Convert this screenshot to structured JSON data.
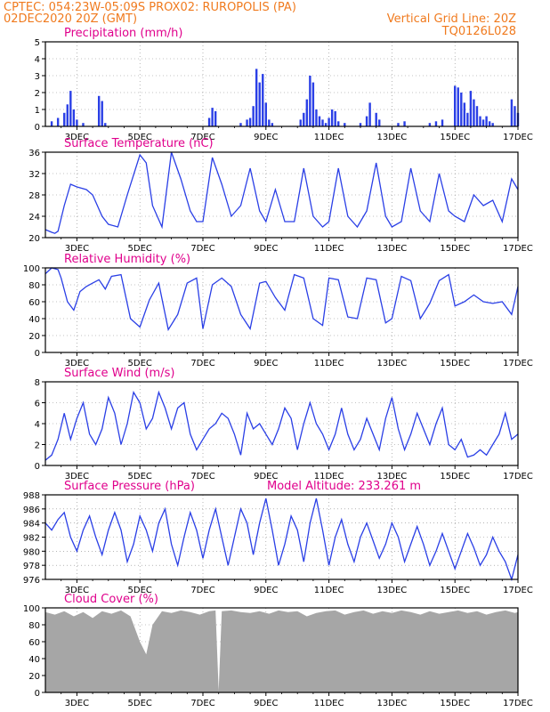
{
  "header": {
    "line1": "CPTEC:   054:23W-05:09S   PROX02: RUROPOLIS (PA)",
    "line2": "02DEC2020 20Z (GMT)",
    "grid_note": "Vertical Grid Line: 20Z",
    "code": "TQ0126L028"
  },
  "colors": {
    "header": "#f07a1e",
    "title": "#e0008c",
    "line": "#2a3fe6",
    "bar": "#2a3fe6",
    "cloud": "#a6a6a6"
  },
  "x_ticks": [
    "3DEC",
    "5DEC",
    "7DEC",
    "9DEC",
    "11DEC",
    "13DEC",
    "15DEC",
    "17DEC"
  ],
  "chart_data": [
    {
      "type": "bar",
      "title": "Precipitation (mm/h)",
      "ylim": [
        0,
        5
      ],
      "yticks": [
        "0",
        "1",
        "2",
        "3",
        "4",
        "5"
      ],
      "x": [
        2.2,
        2.4,
        2.6,
        2.7,
        2.8,
        2.9,
        3.0,
        3.2,
        3.7,
        3.8,
        3.9,
        7.2,
        7.3,
        7.4,
        8.2,
        8.4,
        8.5,
        8.6,
        8.7,
        8.8,
        8.9,
        9.0,
        9.1,
        9.2,
        10.1,
        10.2,
        10.3,
        10.4,
        10.5,
        10.6,
        10.7,
        10.8,
        10.9,
        11.0,
        11.1,
        11.2,
        11.3,
        11.5,
        12.0,
        12.2,
        12.3,
        12.5,
        12.6,
        13.2,
        13.4,
        14.2,
        14.4,
        14.6,
        15.0,
        15.1,
        15.2,
        15.3,
        15.4,
        15.5,
        15.6,
        15.7,
        15.8,
        15.9,
        16.0,
        16.1,
        16.2,
        16.8,
        16.9,
        17.0
      ],
      "values": [
        0.3,
        0.5,
        0.8,
        1.3,
        2.1,
        1.0,
        0.4,
        0.2,
        1.8,
        1.5,
        0.2,
        0.5,
        1.1,
        0.9,
        0.2,
        0.4,
        0.5,
        1.2,
        3.4,
        2.6,
        3.1,
        1.4,
        0.4,
        0.2,
        0.4,
        0.8,
        1.6,
        3.0,
        2.6,
        1.0,
        0.6,
        0.4,
        0.2,
        0.5,
        1.0,
        0.9,
        0.3,
        0.2,
        0.2,
        0.6,
        1.4,
        0.8,
        0.4,
        0.2,
        0.3,
        0.2,
        0.3,
        0.4,
        2.4,
        2.3,
        2.0,
        1.4,
        0.8,
        2.1,
        1.6,
        1.2,
        0.6,
        0.4,
        0.6,
        0.3,
        0.2,
        1.6,
        1.2,
        0.8
      ]
    },
    {
      "type": "line",
      "title": "Surface Temperature (nC)",
      "ylim": [
        20,
        36
      ],
      "yticks": [
        "20",
        "24",
        "28",
        "32",
        "36"
      ],
      "x": [
        2.0,
        2.2,
        2.3,
        2.4,
        2.6,
        2.8,
        3.0,
        3.3,
        3.5,
        3.8,
        4.0,
        4.3,
        4.6,
        5.0,
        5.2,
        5.4,
        5.7,
        6.0,
        6.3,
        6.6,
        6.8,
        7.0,
        7.3,
        7.6,
        7.9,
        8.2,
        8.5,
        8.8,
        9.0,
        9.3,
        9.6,
        9.9,
        10.2,
        10.5,
        10.8,
        11.0,
        11.3,
        11.6,
        11.9,
        12.2,
        12.5,
        12.8,
        13.0,
        13.3,
        13.6,
        13.9,
        14.2,
        14.5,
        14.8,
        15.0,
        15.3,
        15.6,
        15.9,
        16.2,
        16.5,
        16.8,
        17.0
      ],
      "values": [
        21.5,
        21.0,
        20.8,
        21.2,
        26,
        30,
        29.5,
        29,
        28,
        24,
        22.5,
        22,
        28,
        35.5,
        34,
        26,
        22,
        36,
        31,
        25,
        23,
        23,
        35,
        30,
        24,
        26,
        33,
        25,
        23,
        29,
        23,
        23,
        33,
        24,
        22,
        23,
        33,
        24,
        22,
        25,
        34,
        24,
        22,
        23,
        33,
        25,
        23,
        32,
        25,
        24,
        23,
        28,
        26,
        27,
        23,
        31,
        29
      ]
    },
    {
      "type": "line",
      "title": "Relative Humidity (%)",
      "ylim": [
        0,
        100
      ],
      "yticks": [
        "0",
        "20",
        "40",
        "60",
        "80",
        "100"
      ],
      "x": [
        2.0,
        2.2,
        2.4,
        2.5,
        2.7,
        2.9,
        3.1,
        3.3,
        3.5,
        3.7,
        3.9,
        4.1,
        4.4,
        4.7,
        5.0,
        5.3,
        5.6,
        5.9,
        6.2,
        6.5,
        6.8,
        7.0,
        7.3,
        7.6,
        7.9,
        8.2,
        8.5,
        8.8,
        9.0,
        9.3,
        9.6,
        9.9,
        10.2,
        10.5,
        10.8,
        11.0,
        11.3,
        11.6,
        11.9,
        12.2,
        12.5,
        12.8,
        13.0,
        13.3,
        13.6,
        13.9,
        14.2,
        14.5,
        14.8,
        15.0,
        15.3,
        15.6,
        15.9,
        16.2,
        16.5,
        16.8,
        17.0
      ],
      "values": [
        93,
        100,
        98,
        88,
        60,
        50,
        72,
        78,
        82,
        86,
        75,
        90,
        92,
        40,
        30,
        62,
        82,
        27,
        45,
        82,
        88,
        28,
        80,
        88,
        78,
        45,
        28,
        82,
        84,
        65,
        50,
        92,
        88,
        40,
        32,
        88,
        86,
        42,
        40,
        88,
        86,
        35,
        40,
        90,
        85,
        40,
        58,
        85,
        92,
        55,
        60,
        68,
        60,
        58,
        60,
        45,
        78
      ]
    },
    {
      "type": "line",
      "title": "Surface Wind (m/s)",
      "ylim": [
        0,
        8
      ],
      "yticks": [
        "0",
        "2",
        "4",
        "6",
        "8"
      ],
      "x": [
        2.0,
        2.2,
        2.4,
        2.6,
        2.8,
        3.0,
        3.2,
        3.4,
        3.6,
        3.8,
        4.0,
        4.2,
        4.4,
        4.6,
        4.8,
        5.0,
        5.2,
        5.4,
        5.6,
        5.8,
        6.0,
        6.2,
        6.4,
        6.6,
        6.8,
        7.0,
        7.2,
        7.4,
        7.6,
        7.8,
        8.0,
        8.2,
        8.4,
        8.6,
        8.8,
        9.0,
        9.2,
        9.4,
        9.6,
        9.8,
        10.0,
        10.2,
        10.4,
        10.6,
        10.8,
        11.0,
        11.2,
        11.4,
        11.6,
        11.8,
        12.0,
        12.2,
        12.4,
        12.6,
        12.8,
        13.0,
        13.2,
        13.4,
        13.6,
        13.8,
        14.0,
        14.2,
        14.4,
        14.6,
        14.8,
        15.0,
        15.2,
        15.4,
        15.6,
        15.8,
        16.0,
        16.2,
        16.4,
        16.6,
        16.8,
        17.0
      ],
      "values": [
        0.5,
        1.0,
        2.5,
        5.0,
        2.5,
        4.5,
        6.0,
        3.0,
        2.0,
        3.5,
        6.5,
        5.0,
        2.0,
        4.0,
        7.0,
        6.0,
        3.5,
        4.5,
        7.0,
        5.5,
        3.5,
        5.5,
        6.0,
        3.0,
        1.5,
        2.5,
        3.5,
        4.0,
        5.0,
        4.5,
        3.0,
        1.0,
        5.0,
        3.5,
        4.0,
        3.0,
        2.0,
        3.5,
        5.5,
        4.5,
        1.5,
        4.0,
        6.0,
        4.0,
        3.0,
        1.5,
        3.0,
        5.5,
        3.0,
        1.5,
        2.5,
        4.5,
        3.0,
        1.5,
        4.5,
        6.5,
        3.5,
        1.5,
        3.0,
        5.0,
        3.5,
        2.0,
        4.0,
        5.5,
        2.0,
        1.5,
        2.5,
        0.8,
        1.0,
        1.5,
        1.0,
        2.0,
        3.0,
        5.0,
        2.5,
        3.0
      ]
    },
    {
      "type": "line",
      "title": "Surface Pressure (hPa)",
      "annotation": "Model Altitude: 233.261  m",
      "ylim": [
        976,
        988
      ],
      "yticks": [
        "976",
        "978",
        "980",
        "982",
        "984",
        "986",
        "988"
      ],
      "x": [
        2.0,
        2.2,
        2.4,
        2.6,
        2.8,
        3.0,
        3.2,
        3.4,
        3.6,
        3.8,
        4.0,
        4.2,
        4.4,
        4.6,
        4.8,
        5.0,
        5.2,
        5.4,
        5.6,
        5.8,
        6.0,
        6.2,
        6.4,
        6.6,
        6.8,
        7.0,
        7.2,
        7.4,
        7.6,
        7.8,
        8.0,
        8.2,
        8.4,
        8.6,
        8.8,
        9.0,
        9.2,
        9.4,
        9.6,
        9.8,
        10.0,
        10.2,
        10.4,
        10.6,
        10.8,
        11.0,
        11.2,
        11.4,
        11.6,
        11.8,
        12.0,
        12.2,
        12.4,
        12.6,
        12.8,
        13.0,
        13.2,
        13.4,
        13.6,
        13.8,
        14.0,
        14.2,
        14.4,
        14.6,
        14.8,
        15.0,
        15.2,
        15.4,
        15.6,
        15.8,
        16.0,
        16.2,
        16.4,
        16.6,
        16.8,
        17.0
      ],
      "values": [
        984,
        983,
        984.5,
        985.5,
        982,
        980,
        983,
        985,
        982,
        979.5,
        983,
        985.5,
        983,
        978.5,
        981,
        985,
        983,
        980,
        984,
        986,
        981,
        978,
        982,
        985.5,
        983,
        979,
        983,
        986,
        982,
        978,
        982,
        986,
        984,
        979.5,
        984,
        987.5,
        983,
        978,
        981,
        985,
        983,
        978.5,
        984,
        987.5,
        983,
        978,
        982,
        984.5,
        981,
        978.5,
        982,
        984,
        981.5,
        979,
        981,
        984,
        982,
        978.5,
        981,
        983.5,
        981,
        978,
        980,
        982.5,
        980,
        977.5,
        980,
        982.5,
        980.5,
        978,
        979.5,
        982,
        980,
        978.5,
        976,
        979.5
      ]
    },
    {
      "type": "area",
      "title": "Cloud Cover (%)",
      "ylim": [
        0,
        100
      ],
      "yticks": [
        "0",
        "20",
        "40",
        "60",
        "80",
        "100"
      ],
      "x": [
        2.0,
        2.3,
        2.6,
        2.9,
        3.2,
        3.5,
        3.8,
        4.1,
        4.4,
        4.7,
        5.0,
        5.2,
        5.4,
        5.7,
        6.0,
        6.3,
        6.6,
        6.9,
        7.2,
        7.4,
        7.5,
        7.6,
        7.9,
        8.2,
        8.5,
        8.8,
        9.1,
        9.4,
        9.7,
        10.0,
        10.3,
        10.6,
        10.9,
        11.2,
        11.5,
        11.8,
        12.1,
        12.4,
        12.7,
        13.0,
        13.3,
        13.6,
        13.9,
        14.2,
        14.5,
        14.8,
        15.1,
        15.4,
        15.7,
        16.0,
        16.3,
        16.6,
        16.9,
        17.0
      ],
      "values": [
        95,
        92,
        96,
        90,
        95,
        88,
        96,
        93,
        97,
        90,
        60,
        45,
        80,
        96,
        94,
        97,
        95,
        92,
        96,
        97,
        2,
        96,
        97,
        95,
        94,
        96,
        93,
        97,
        95,
        96,
        90,
        94,
        96,
        97,
        92,
        95,
        97,
        93,
        96,
        94,
        97,
        95,
        92,
        96,
        93,
        95,
        97,
        94,
        96,
        92,
        95,
        97,
        94,
        95
      ]
    }
  ]
}
